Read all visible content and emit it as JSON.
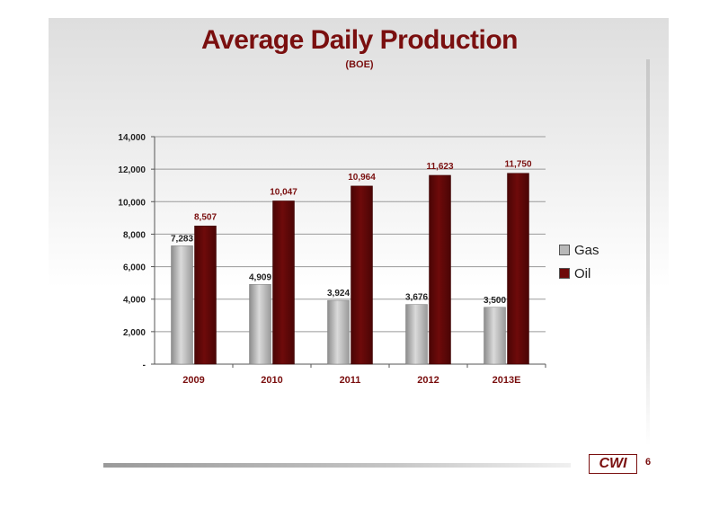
{
  "slide": {
    "title": "Average Daily Production",
    "subtitle": "(BOE)",
    "logo_text": "CWI",
    "page_number": "6"
  },
  "colors": {
    "gas": "#b8b8b8",
    "oil": "#6e0a0a",
    "accent": "#7a0f0f"
  },
  "chart_data": {
    "type": "bar",
    "categories": [
      "2009",
      "2010",
      "2011",
      "2012",
      "2013E"
    ],
    "series": [
      {
        "name": "Gas",
        "values": [
          7283,
          4909,
          3924,
          3676,
          3500
        ],
        "labels": [
          "7,283",
          "4,909",
          "3,924",
          "3,676",
          "3,500"
        ]
      },
      {
        "name": "Oil",
        "values": [
          8507,
          10047,
          10964,
          11623,
          11750
        ],
        "labels": [
          "8,507",
          "10,047",
          "10,964",
          "11,623",
          "11,750"
        ]
      }
    ],
    "ylim": [
      0,
      14000
    ],
    "yticks": [
      0,
      2000,
      4000,
      6000,
      8000,
      10000,
      12000,
      14000
    ],
    "ytick_labels": [
      "-",
      "2,000",
      "4,000",
      "6,000",
      "8,000",
      "10,000",
      "12,000",
      "14,000"
    ],
    "legend": "right",
    "grid": true
  }
}
